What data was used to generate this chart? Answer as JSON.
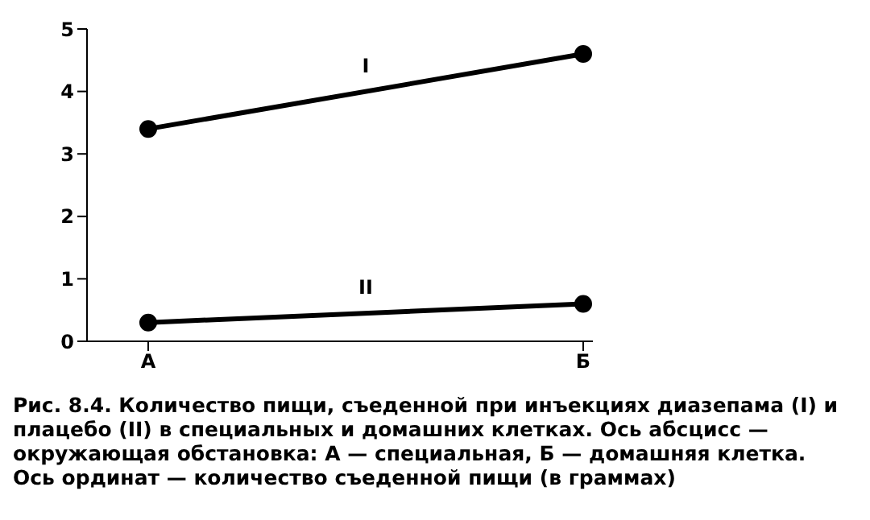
{
  "chart_data": {
    "type": "line",
    "categories": [
      "А",
      "Б"
    ],
    "series": [
      {
        "name": "I",
        "color": "#000000",
        "values": [
          3.4,
          4.6
        ]
      },
      {
        "name": "II",
        "color": "#000000",
        "values": [
          0.3,
          0.6
        ]
      }
    ],
    "ylim": [
      0,
      5
    ],
    "yticks": [
      0,
      1,
      2,
      3,
      4,
      5
    ],
    "grid": false,
    "legend": false,
    "marker": "circle",
    "line_style": "solid",
    "annotations": [
      "Рис. 8.4. Количество пищи, съеденной при инъекциях диазепама (I) и плацебо (II) в специальных и домашних клетках. Ось абсцисс — окружающая обстановка: А — специальная, Б — домашняя клетка. Ось ординат — количество съеденной пищи (в граммах)"
    ]
  }
}
